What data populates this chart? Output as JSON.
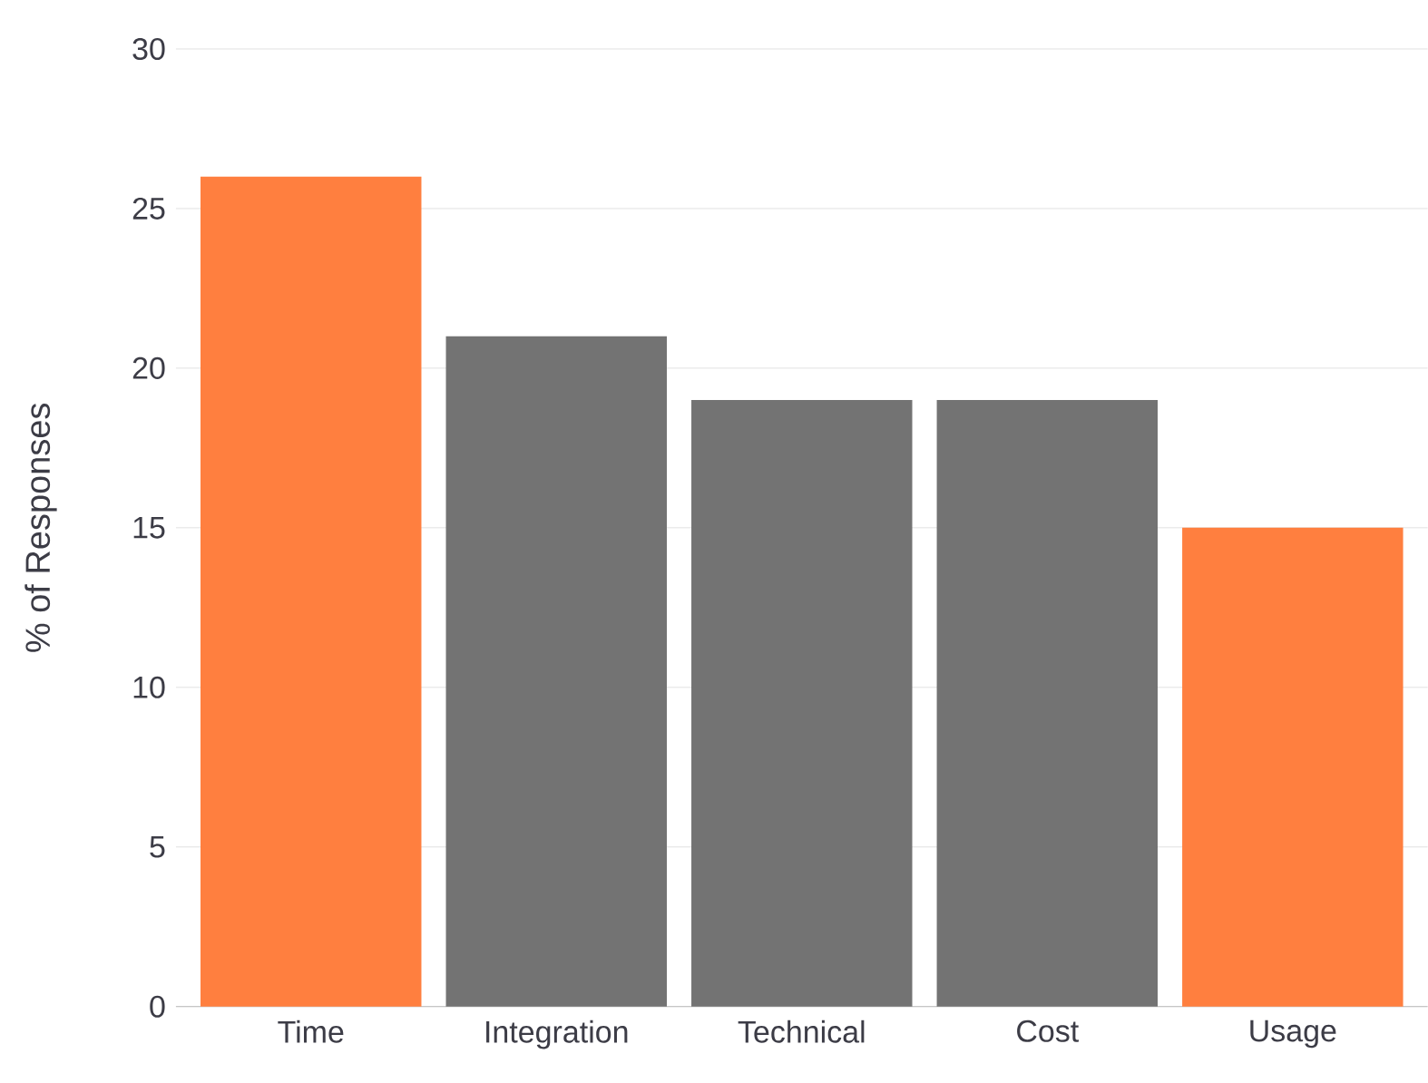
{
  "chart_data": {
    "type": "bar",
    "ylabel": "% of Responses",
    "categories": [
      "Time",
      "Integration",
      "Technical",
      "Cost",
      "Usage"
    ],
    "values": [
      26,
      21,
      19,
      19,
      15
    ],
    "colors": [
      "#ff7f3f",
      "#737373",
      "#737373",
      "#737373",
      "#ff7f3f"
    ],
    "ylim": [
      0,
      30
    ],
    "yticks": [
      0,
      5,
      10,
      15,
      20,
      25,
      30
    ],
    "grid": "y"
  }
}
